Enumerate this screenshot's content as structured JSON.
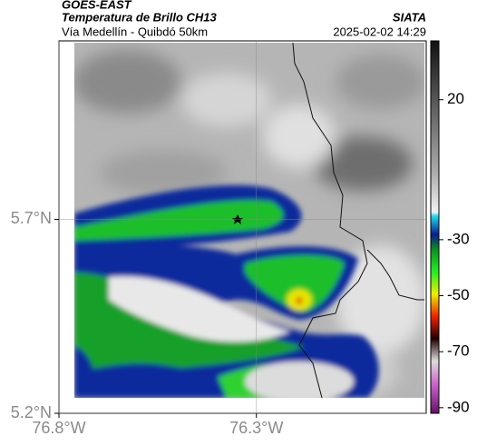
{
  "header": {
    "title": "GOES-EAST",
    "subtitle": "Temperatura de Brillo CH13",
    "location": "Vía Medellín - Quibdó 50km",
    "source": "SIATA",
    "timestamp": "2025-02-02 14:29"
  },
  "map": {
    "lonlim": [
      -76.8,
      -75.87
    ],
    "latlim": [
      5.2,
      6.16
    ],
    "lonticks": [
      {
        "value": -76.8,
        "label": "76.8°W"
      },
      {
        "value": -76.3,
        "label": "76.3°W"
      }
    ],
    "latticks": [
      {
        "value": 5.7,
        "label": "5.7°N"
      },
      {
        "value": 5.2,
        "label": "5.2°N"
      }
    ],
    "grid": true
  },
  "colorbar": {
    "lim": [
      -92,
      41
    ],
    "ticks": [
      20,
      -30,
      -50,
      -70,
      -90
    ]
  }
}
